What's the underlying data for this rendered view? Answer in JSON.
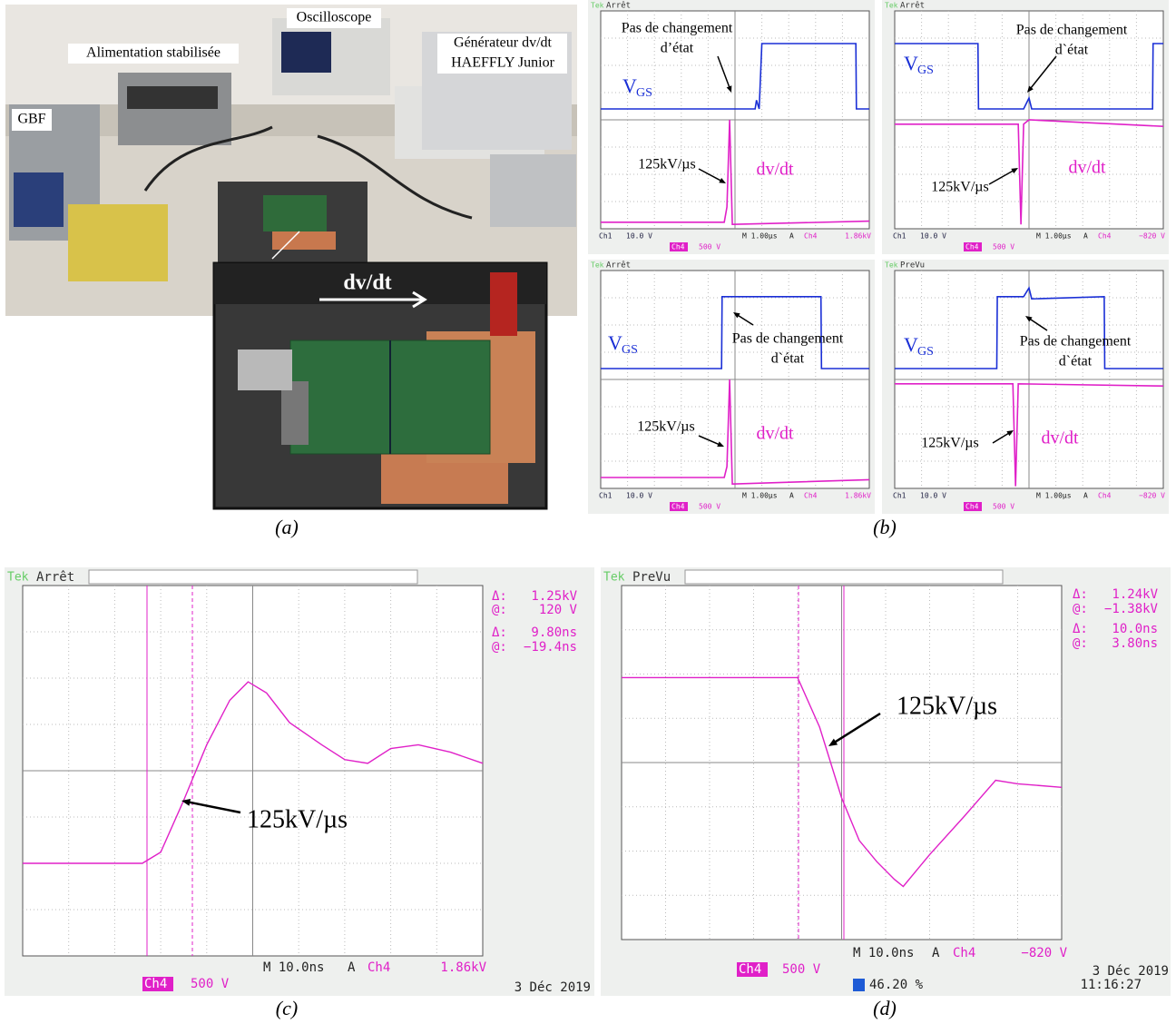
{
  "figure": {
    "photo": {
      "oscilloscope": "Oscilloscope",
      "power_supply": "Alimentation stabilisée",
      "generator_line1": "Générateur dv/dt",
      "generator_line2": "HAEFFLY Junior",
      "function_generator": "GBF",
      "inset_label": "dv/dt",
      "caption": "(a)"
    },
    "scopes": {
      "caption": "(b)",
      "screens": [
        {
          "brand": "Tek",
          "status": "Arrêt",
          "note_line1": "Pas de changement",
          "note_line2": "d’état",
          "vgs": "V",
          "vgs_sub": "GS",
          "slope": "125kV/µs",
          "dvdt": "dv/dt",
          "ch1": "Ch1",
          "ch1_scale": "10.0 V",
          "ch4": "Ch4",
          "ch4_scale": "500 V",
          "timebase": "M 1.00µs",
          "trigger_mode": "A",
          "trigger_source": "Ch4",
          "trigger_level": "1.86kV"
        },
        {
          "brand": "Tek",
          "status": "Arrêt",
          "note_line1": "Pas de changement",
          "note_line2": "d`état",
          "vgs": "V",
          "vgs_sub": "GS",
          "slope": "125kV/µs",
          "dvdt": "dv/dt",
          "ch1": "Ch1",
          "ch1_scale": "10.0 V",
          "ch4": "Ch4",
          "ch4_scale": "500 V",
          "timebase": "M 1.00µs",
          "trigger_mode": "A",
          "trigger_source": "Ch4",
          "trigger_level": "−820 V"
        },
        {
          "brand": "Tek",
          "status": "Arrêt",
          "note_line1": "Pas de changement",
          "note_line2": "d`état",
          "vgs": "V",
          "vgs_sub": "GS",
          "slope": "125kV/µs",
          "dvdt": "dv/dt",
          "ch1": "Ch1",
          "ch1_scale": "10.0 V",
          "ch4": "Ch4",
          "ch4_scale": "500 V",
          "timebase": "M 1.00µs",
          "trigger_mode": "A",
          "trigger_source": "Ch4",
          "trigger_level": "1.86kV"
        },
        {
          "brand": "Tek",
          "status": "PreVu",
          "note_line1": "Pas de changement",
          "note_line2": "d`état",
          "vgs": "V",
          "vgs_sub": "GS",
          "slope": "125kV/µs",
          "dvdt": "dv/dt",
          "ch1": "Ch1",
          "ch1_scale": "10.0 V",
          "ch4": "Ch4",
          "ch4_scale": "500 V",
          "timebase": "M 1.00µs",
          "trigger_mode": "A",
          "trigger_source": "Ch4",
          "trigger_level": "−820 V"
        }
      ]
    },
    "zoom_c": {
      "brand": "Tek",
      "status": "Arrêt",
      "readouts": [
        {
          "delta_label": "Δ:",
          "delta": "1.25kV",
          "at_label": "@:",
          "at": "120 V"
        },
        {
          "delta_label": "Δ:",
          "delta": "9.80ns",
          "at_label": "@:",
          "at": "−19.4ns"
        }
      ],
      "slope": "125kV/µs",
      "timebase": "M 10.0ns",
      "trigger_mode": "A",
      "trigger_source": "Ch4",
      "trigger_level": "1.86kV",
      "channel": "Ch4",
      "channel_scale": "500 V",
      "date": "3 Déc 2019",
      "caption": "(c)"
    },
    "zoom_d": {
      "brand": "Tek",
      "status": "PreVu",
      "readouts": [
        {
          "delta_label": "Δ:",
          "delta": "1.24kV",
          "at_label": "@:",
          "at": "−1.38kV"
        },
        {
          "delta_label": "Δ:",
          "delta": "10.0ns",
          "at_label": "@:",
          "at": "3.80ns"
        }
      ],
      "slope": "125kV/µs",
      "timebase": "M 10.0ns",
      "trigger_mode": "A",
      "trigger_source": "Ch4",
      "trigger_level": "−820 V",
      "channel": "Ch4",
      "channel_scale": "500 V",
      "trigger_position": "46.20 %",
      "date": "3 Déc 2019",
      "time": "11:16:27",
      "caption": "(d)"
    }
  }
}
